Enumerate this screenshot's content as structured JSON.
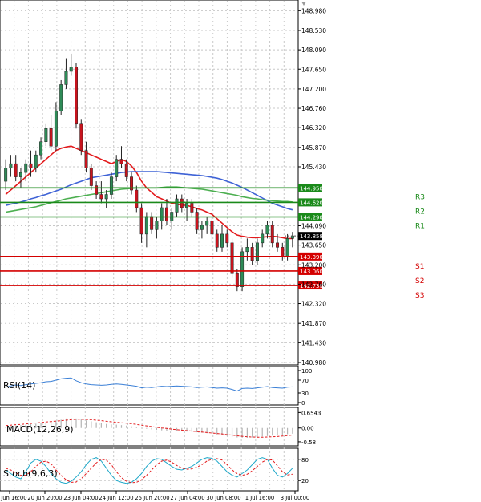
{
  "colors": {
    "background": "#ffffff",
    "grid": "#c8c8c8",
    "axis": "#000000",
    "candle_up": "#2e8b57",
    "candle_down": "#c8141e",
    "ma_fast": "#e31a1c",
    "ma_mid": "#3f63d6",
    "ma_slow": "#4caf50",
    "resistance": "#1a8a1a",
    "support": "#d40000",
    "rsi": "#3a7fd6",
    "macd_signal": "#e31a1c",
    "macd_hist": "#b4b4b4",
    "stoch_main": "#1fa8c9",
    "stoch_signal": "#e31a1c",
    "price_tag_text": "#ffffff",
    "current_tag": "#000000"
  },
  "chart_data": [
    {
      "type": "candlestick",
      "panel": "price",
      "y_ticks": [
        "148.980",
        "148.530",
        "148.090",
        "147.650",
        "147.200",
        "146.760",
        "146.320",
        "145.870",
        "145.430",
        "144.090",
        "143.650",
        "143.200",
        "142.760",
        "142.320",
        "141.870",
        "141.430",
        "140.980"
      ],
      "ylim": [
        140.98,
        149.15
      ],
      "x_ticks": [
        "20 Jun 16:00",
        "20 Jun 20:00",
        "23 Jun 04:00",
        "24 Jun 12:00",
        "25 Jun 20:00",
        "27 Jun 04:00",
        "30 Jun 08:00",
        "1 Jul 16:00",
        "3 Jul 00:00"
      ],
      "candles": [
        {
          "o": 145.1,
          "h": 145.6,
          "l": 144.9,
          "c": 145.4
        },
        {
          "o": 145.4,
          "h": 145.7,
          "l": 145.2,
          "c": 145.5
        },
        {
          "o": 145.5,
          "h": 145.7,
          "l": 145.1,
          "c": 145.2
        },
        {
          "o": 145.2,
          "h": 145.4,
          "l": 144.95,
          "c": 145.3
        },
        {
          "o": 145.3,
          "h": 145.6,
          "l": 145.1,
          "c": 145.5
        },
        {
          "o": 145.5,
          "h": 145.8,
          "l": 145.2,
          "c": 145.4
        },
        {
          "o": 145.4,
          "h": 145.8,
          "l": 145.3,
          "c": 145.7
        },
        {
          "o": 145.7,
          "h": 146.1,
          "l": 145.6,
          "c": 146.0
        },
        {
          "o": 146.0,
          "h": 146.4,
          "l": 145.9,
          "c": 146.3
        },
        {
          "o": 146.3,
          "h": 146.6,
          "l": 145.8,
          "c": 145.9
        },
        {
          "o": 145.9,
          "h": 146.9,
          "l": 145.8,
          "c": 146.7
        },
        {
          "o": 146.7,
          "h": 147.4,
          "l": 146.6,
          "c": 147.3
        },
        {
          "o": 147.3,
          "h": 147.9,
          "l": 147.2,
          "c": 147.6
        },
        {
          "o": 147.6,
          "h": 148.0,
          "l": 147.5,
          "c": 147.7
        },
        {
          "o": 147.7,
          "h": 147.8,
          "l": 146.3,
          "c": 146.4
        },
        {
          "o": 146.4,
          "h": 146.5,
          "l": 145.7,
          "c": 145.8
        },
        {
          "o": 145.8,
          "h": 146.0,
          "l": 145.3,
          "c": 145.4
        },
        {
          "o": 145.4,
          "h": 145.5,
          "l": 144.9,
          "c": 145.0
        },
        {
          "o": 145.0,
          "h": 145.1,
          "l": 144.7,
          "c": 144.8
        },
        {
          "o": 144.8,
          "h": 145.1,
          "l": 144.6,
          "c": 144.7
        },
        {
          "o": 144.7,
          "h": 144.9,
          "l": 144.5,
          "c": 144.8
        },
        {
          "o": 144.8,
          "h": 145.3,
          "l": 144.7,
          "c": 145.2
        },
        {
          "o": 145.2,
          "h": 145.7,
          "l": 145.1,
          "c": 145.6
        },
        {
          "o": 145.6,
          "h": 145.9,
          "l": 145.4,
          "c": 145.5
        },
        {
          "o": 145.5,
          "h": 145.6,
          "l": 145.1,
          "c": 145.2
        },
        {
          "o": 145.2,
          "h": 145.3,
          "l": 144.8,
          "c": 144.9
        },
        {
          "o": 144.9,
          "h": 145.0,
          "l": 144.4,
          "c": 144.5
        },
        {
          "o": 144.5,
          "h": 144.6,
          "l": 143.7,
          "c": 143.9
        },
        {
          "o": 143.9,
          "h": 144.4,
          "l": 143.6,
          "c": 144.3
        },
        {
          "o": 144.3,
          "h": 144.4,
          "l": 143.9,
          "c": 144.0
        },
        {
          "o": 144.0,
          "h": 144.3,
          "l": 143.8,
          "c": 144.2
        },
        {
          "o": 144.2,
          "h": 144.6,
          "l": 144.0,
          "c": 144.5
        },
        {
          "o": 144.5,
          "h": 144.7,
          "l": 144.1,
          "c": 144.2
        },
        {
          "o": 144.2,
          "h": 144.5,
          "l": 144.0,
          "c": 144.4
        },
        {
          "o": 144.4,
          "h": 144.8,
          "l": 144.3,
          "c": 144.7
        },
        {
          "o": 144.7,
          "h": 144.8,
          "l": 144.4,
          "c": 144.5
        },
        {
          "o": 144.5,
          "h": 144.7,
          "l": 144.2,
          "c": 144.6
        },
        {
          "o": 144.6,
          "h": 144.7,
          "l": 144.3,
          "c": 144.4
        },
        {
          "o": 144.4,
          "h": 144.5,
          "l": 143.9,
          "c": 144.0
        },
        {
          "o": 144.0,
          "h": 144.2,
          "l": 143.8,
          "c": 144.1
        },
        {
          "o": 144.1,
          "h": 144.3,
          "l": 143.9,
          "c": 144.2
        },
        {
          "o": 144.2,
          "h": 144.3,
          "l": 143.7,
          "c": 143.9
        },
        {
          "o": 143.9,
          "h": 144.0,
          "l": 143.5,
          "c": 143.6
        },
        {
          "o": 143.6,
          "h": 144.1,
          "l": 143.5,
          "c": 143.9
        },
        {
          "o": 143.9,
          "h": 144.0,
          "l": 143.6,
          "c": 143.7
        },
        {
          "o": 143.7,
          "h": 143.8,
          "l": 142.9,
          "c": 143.0
        },
        {
          "o": 143.0,
          "h": 143.1,
          "l": 142.6,
          "c": 142.7
        },
        {
          "o": 142.7,
          "h": 143.6,
          "l": 142.6,
          "c": 143.5
        },
        {
          "o": 143.5,
          "h": 143.8,
          "l": 143.3,
          "c": 143.6
        },
        {
          "o": 143.6,
          "h": 143.7,
          "l": 143.2,
          "c": 143.3
        },
        {
          "o": 143.3,
          "h": 143.8,
          "l": 143.2,
          "c": 143.7
        },
        {
          "o": 143.7,
          "h": 144.0,
          "l": 143.6,
          "c": 143.9
        },
        {
          "o": 143.9,
          "h": 144.2,
          "l": 143.8,
          "c": 144.1
        },
        {
          "o": 144.1,
          "h": 144.2,
          "l": 143.6,
          "c": 143.7
        },
        {
          "o": 143.7,
          "h": 143.9,
          "l": 143.5,
          "c": 143.6
        },
        {
          "o": 143.6,
          "h": 143.7,
          "l": 143.3,
          "c": 143.4
        },
        {
          "o": 143.4,
          "h": 143.9,
          "l": 143.3,
          "c": 143.8
        },
        {
          "o": 143.8,
          "h": 143.95,
          "l": 143.6,
          "c": 143.86
        }
      ],
      "moving_averages": [
        {
          "key": "ma_fast",
          "values": [
            144.8,
            144.9,
            145.0,
            145.1,
            145.2,
            145.3,
            145.4,
            145.5,
            145.6,
            145.7,
            145.8,
            145.85,
            145.88,
            145.9,
            145.85,
            145.8,
            145.75,
            145.7,
            145.65,
            145.6,
            145.55,
            145.5,
            145.55,
            145.6,
            145.55,
            145.45,
            145.3,
            145.1,
            144.95,
            144.85,
            144.75,
            144.7,
            144.65,
            144.6,
            144.58,
            144.56,
            144.55,
            144.52,
            144.48,
            144.45,
            144.4,
            144.35,
            144.25,
            144.15,
            144.05,
            143.95,
            143.88,
            143.85,
            143.83,
            143.82,
            143.82,
            143.83,
            143.84,
            143.85,
            143.84,
            143.82,
            143.8,
            143.8
          ]
        },
        {
          "key": "ma_mid",
          "values": [
            144.55,
            144.58,
            144.6,
            144.63,
            144.66,
            144.7,
            144.73,
            144.77,
            144.8,
            144.84,
            144.88,
            144.92,
            144.97,
            145.02,
            145.06,
            145.1,
            145.14,
            145.18,
            145.2,
            145.22,
            145.24,
            145.26,
            145.28,
            145.3,
            145.31,
            145.32,
            145.32,
            145.32,
            145.32,
            145.32,
            145.32,
            145.31,
            145.3,
            145.29,
            145.28,
            145.27,
            145.26,
            145.25,
            145.24,
            145.23,
            145.21,
            145.19,
            145.17,
            145.14,
            145.1,
            145.06,
            145.01,
            144.96,
            144.9,
            144.84,
            144.78,
            144.72,
            144.66,
            144.6,
            144.56,
            144.52,
            144.48,
            144.45
          ]
        },
        {
          "key": "ma_slow",
          "values": [
            144.4,
            144.42,
            144.44,
            144.46,
            144.48,
            144.5,
            144.52,
            144.55,
            144.58,
            144.61,
            144.64,
            144.67,
            144.7,
            144.72,
            144.74,
            144.76,
            144.78,
            144.8,
            144.82,
            144.84,
            144.86,
            144.88,
            144.9,
            144.92,
            144.93,
            144.94,
            144.95,
            144.95,
            144.95,
            144.95,
            144.95,
            144.96,
            144.97,
            144.97,
            144.97,
            144.96,
            144.95,
            144.94,
            144.93,
            144.92,
            144.9,
            144.88,
            144.86,
            144.84,
            144.82,
            144.8,
            144.78,
            144.75,
            144.73,
            144.71,
            144.7,
            144.68,
            144.67,
            144.66,
            144.65,
            144.64,
            144.64,
            144.63
          ]
        }
      ],
      "levels": [
        {
          "name": "R3",
          "price": "144.950",
          "kind": "resistance"
        },
        {
          "name": "R2",
          "price": "144.620",
          "kind": "resistance"
        },
        {
          "name": "R1",
          "price": "144.290",
          "kind": "resistance"
        },
        {
          "name": "S1",
          "price": "143.390",
          "kind": "support"
        },
        {
          "name": "S2",
          "price": "143.060",
          "kind": "support"
        },
        {
          "name": "S3",
          "price": "142.730",
          "kind": "support"
        }
      ],
      "current_price": "143.858"
    },
    {
      "type": "line",
      "panel": "rsi",
      "label": "RSI(14)",
      "y_ticks": [
        "100",
        "70",
        "30",
        "0"
      ],
      "ylim": [
        0,
        100
      ],
      "values": [
        48,
        52,
        55,
        53,
        56,
        58,
        60,
        62,
        65,
        66,
        70,
        74,
        76,
        77,
        68,
        62,
        58,
        56,
        55,
        54,
        55,
        57,
        58,
        57,
        55,
        53,
        51,
        46,
        48,
        47,
        49,
        51,
        50,
        51,
        52,
        51,
        50,
        49,
        47,
        48,
        49,
        47,
        45,
        46,
        45,
        41,
        36,
        44,
        45,
        44,
        46,
        48,
        50,
        47,
        46,
        45,
        48,
        49
      ]
    },
    {
      "type": "bar",
      "panel": "macd",
      "label": "MACD(12,26,9)",
      "y_ticks": [
        "0.6543",
        "0.00",
        "-0.58"
      ],
      "ylim": [
        -0.65,
        0.7
      ],
      "histogram": [
        0.05,
        0.08,
        0.1,
        0.12,
        0.14,
        0.16,
        0.18,
        0.2,
        0.23,
        0.26,
        0.3,
        0.35,
        0.4,
        0.42,
        0.4,
        0.36,
        0.32,
        0.28,
        0.24,
        0.2,
        0.17,
        0.15,
        0.14,
        0.12,
        0.1,
        0.07,
        0.04,
        0.0,
        -0.03,
        -0.06,
        -0.08,
        -0.1,
        -0.12,
        -0.13,
        -0.13,
        -0.14,
        -0.15,
        -0.16,
        -0.18,
        -0.2,
        -0.22,
        -0.24,
        -0.27,
        -0.3,
        -0.33,
        -0.37,
        -0.4,
        -0.41,
        -0.41,
        -0.4,
        -0.38,
        -0.36,
        -0.34,
        -0.32,
        -0.3,
        -0.28,
        -0.26,
        -0.24
      ],
      "signal": [
        0.1,
        0.12,
        0.14,
        0.15,
        0.17,
        0.19,
        0.21,
        0.23,
        0.25,
        0.27,
        0.29,
        0.31,
        0.33,
        0.35,
        0.37,
        0.37,
        0.36,
        0.35,
        0.33,
        0.31,
        0.28,
        0.26,
        0.24,
        0.22,
        0.2,
        0.18,
        0.15,
        0.12,
        0.09,
        0.06,
        0.03,
        0.0,
        -0.02,
        -0.05,
        -0.07,
        -0.09,
        -0.11,
        -0.13,
        -0.15,
        -0.17,
        -0.19,
        -0.21,
        -0.23,
        -0.25,
        -0.28,
        -0.3,
        -0.33,
        -0.35,
        -0.37,
        -0.38,
        -0.39,
        -0.39,
        -0.38,
        -0.37,
        -0.36,
        -0.34,
        -0.32,
        -0.3
      ]
    },
    {
      "type": "line",
      "panel": "stoch",
      "label": "Stoch(9,6,3)",
      "y_ticks": [
        "80",
        "20"
      ],
      "ylim": [
        0,
        100
      ],
      "main": [
        50,
        40,
        30,
        25,
        45,
        70,
        80,
        75,
        60,
        40,
        25,
        15,
        12,
        18,
        30,
        45,
        65,
        80,
        85,
        75,
        55,
        35,
        20,
        15,
        12,
        15,
        25,
        40,
        60,
        75,
        82,
        80,
        70,
        60,
        52,
        50,
        55,
        60,
        70,
        80,
        85,
        83,
        75,
        60,
        45,
        35,
        30,
        40,
        50,
        65,
        80,
        85,
        80,
        55,
        35,
        30,
        40,
        55
      ],
      "signal": [
        55,
        50,
        42,
        35,
        35,
        45,
        60,
        72,
        75,
        68,
        50,
        35,
        22,
        15,
        16,
        25,
        40,
        55,
        70,
        80,
        78,
        65,
        45,
        28,
        18,
        14,
        15,
        22,
        35,
        50,
        65,
        75,
        78,
        72,
        63,
        55,
        52,
        53,
        58,
        65,
        75,
        80,
        82,
        78,
        65,
        50,
        40,
        35,
        38,
        48,
        60,
        72,
        80,
        78,
        62,
        45,
        36,
        38
      ]
    }
  ]
}
